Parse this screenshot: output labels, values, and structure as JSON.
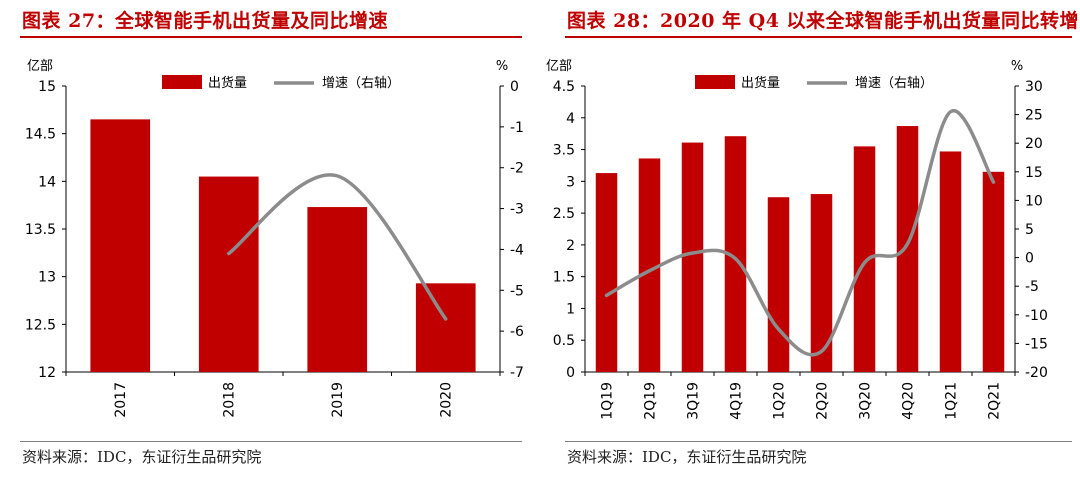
{
  "colors": {
    "bar": "#c00000",
    "line": "#8c8c8c",
    "title": "#c00000"
  },
  "left": {
    "title": "图表 27：全球智能手机出货量及同比增速",
    "source": "资料来源：IDC，东证衍生品研究院",
    "chart_data": {
      "type": "bar",
      "categories": [
        "2017",
        "2018",
        "2019",
        "2020"
      ],
      "series": [
        {
          "name": "出货量",
          "type": "bar",
          "axis": "left",
          "values": [
            14.65,
            14.05,
            13.73,
            12.93
          ]
        },
        {
          "name": "增速（右轴）",
          "type": "line",
          "axis": "right",
          "values": [
            null,
            -4.1,
            -2.2,
            -5.7
          ]
        }
      ],
      "yleft": {
        "label": "亿部",
        "min": 12,
        "max": 15,
        "ticks": [
          "15",
          "14.5",
          "14",
          "13.5",
          "13",
          "12.5",
          "12"
        ]
      },
      "yright": {
        "label": "%",
        "min": -7,
        "max": 0,
        "ticks": [
          "0",
          "-1",
          "-2",
          "-3",
          "-4",
          "-5",
          "-6",
          "-7"
        ]
      },
      "legend": [
        "出货量",
        "增速（右轴）"
      ],
      "legend_position": "top",
      "grid": false
    }
  },
  "right": {
    "title": "图表 28：2020 年 Q4 以来全球智能手机出货量同比转增",
    "source": "资料来源：IDC，东证衍生品研究院",
    "chart_data": {
      "type": "bar",
      "categories": [
        "1Q19",
        "2Q19",
        "3Q19",
        "4Q19",
        "1Q20",
        "2Q20",
        "3Q20",
        "4Q20",
        "1Q21",
        "2Q21"
      ],
      "series": [
        {
          "name": "出货量",
          "type": "bar",
          "axis": "left",
          "values": [
            3.13,
            3.36,
            3.61,
            3.71,
            2.75,
            2.8,
            3.55,
            3.87,
            3.47,
            3.15
          ]
        },
        {
          "name": "增速（右轴）",
          "type": "line",
          "axis": "right",
          "values": [
            -6.6,
            -2.3,
            0.8,
            -0.2,
            -12.5,
            -16.4,
            -0.9,
            2.4,
            25.5,
            13.2
          ]
        }
      ],
      "yleft": {
        "label": "亿部",
        "min": 0,
        "max": 4.5,
        "ticks": [
          "4.5",
          "4",
          "3.5",
          "3",
          "2.5",
          "2",
          "1.5",
          "1",
          "0.5",
          "0"
        ]
      },
      "yright": {
        "label": "%",
        "min": -20,
        "max": 30,
        "ticks": [
          "30",
          "25",
          "20",
          "15",
          "10",
          "5",
          "0",
          "-5",
          "-10",
          "-15",
          "-20"
        ]
      },
      "legend": [
        "出货量",
        "增速（右轴）"
      ],
      "legend_position": "top",
      "grid": false
    }
  }
}
